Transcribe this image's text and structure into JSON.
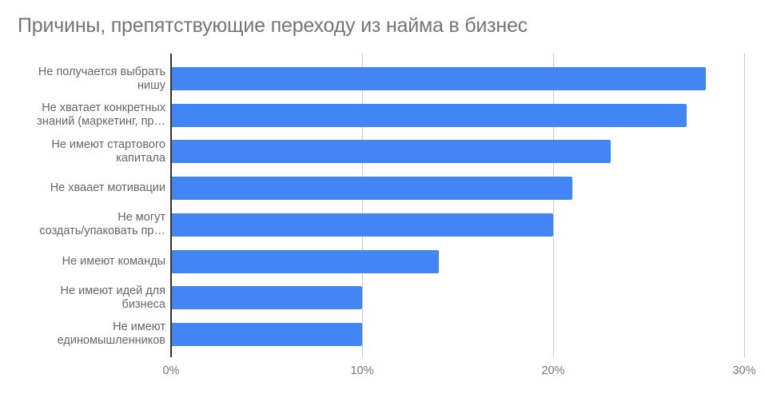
{
  "chart_data": {
    "type": "bar",
    "orientation": "horizontal",
    "title": "Причины, препятствующие переходу из найма в бизнес",
    "xlabel": "",
    "ylabel": "",
    "categories": [
      "Не получается выбрать нишу",
      "Не хватает конкретных знаний (маркетинг, пр…",
      "Не имеют стартового капитала",
      "Не хваает мотивации",
      "Не могут создать/упаковать пр…",
      "Не имеют команды",
      "Не имеют идей для бизнеса",
      "Не имеют единомышленников"
    ],
    "category_lines": [
      [
        "Не получается выбрать",
        "нишу"
      ],
      [
        "Не хватает конкретных",
        "знаний (маркетинг, пр…"
      ],
      [
        "Не имеют стартового",
        "капитала"
      ],
      [
        "Не хваает мотивации"
      ],
      [
        "Не могут",
        "создать/упаковать пр…"
      ],
      [
        "Не имеют команды"
      ],
      [
        "Не имеют идей для",
        "бизнеса"
      ],
      [
        "Не имеют",
        "единомышленников"
      ]
    ],
    "values": [
      28,
      27,
      23,
      21,
      20,
      14,
      10,
      10
    ],
    "unit": "%",
    "xlim": [
      0,
      30
    ],
    "xticks": [
      "0%",
      "10%",
      "20%",
      "30%"
    ],
    "grid": true,
    "legend": null,
    "colors": {
      "bar": "#4285f4",
      "grid": "#cccccc",
      "axis": "#333333",
      "title": "#757575",
      "label": "#666666"
    }
  }
}
